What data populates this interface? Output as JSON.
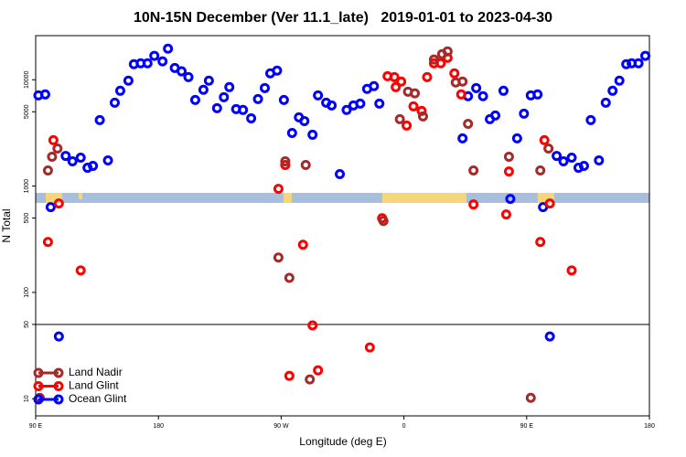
{
  "chart_data": {
    "type": "scatter",
    "title": "10N-15N December (Ver 11.1_late)   2019-01-01 to 2023-04-30",
    "xlabel": "Longitude (deg E)",
    "ylabel": "N Total",
    "log_y": true,
    "legend": "lower left",
    "hline": 50,
    "xlim": [
      90,
      540
    ],
    "xticks": [
      {
        "value": 90,
        "label": "90 E"
      },
      180,
      {
        "value": 270,
        "label": "90 W"
      },
      {
        "value": 360,
        "label": "0"
      },
      {
        "value": 450,
        "label": "90 E"
      },
      {
        "value": 540,
        "label": "180"
      }
    ],
    "ylim": [
      6.9,
      26000
    ],
    "yticks": [
      10,
      50,
      100,
      500,
      1000,
      5000,
      10000
    ],
    "series": [
      {
        "name": "Land Nadir",
        "color": "#a52a2a",
        "x": [
          93,
          99,
          102,
          106,
          268,
          273,
          276,
          288,
          291,
          345,
          357,
          363,
          368,
          374,
          382,
          388,
          392,
          398,
          403,
          407,
          411,
          437,
          453,
          460,
          466
        ],
        "values": [
          10.2,
          1402,
          1888,
          2256,
          213,
          1710,
          137,
          1580,
          15.2,
          470,
          4260,
          7720,
          7450,
          4520,
          15500,
          17400,
          18500,
          9420,
          9610,
          3850,
          1402,
          1888,
          10.2,
          1402,
          2256
        ]
      },
      {
        "name": "Land Glint",
        "color": "#ff0000",
        "x": [
          99,
          103,
          107,
          123,
          268,
          273,
          286,
          293,
          276,
          297,
          335,
          344,
          348,
          353,
          354,
          358,
          362,
          367,
          373,
          377,
          382,
          387,
          392,
          397,
          402,
          411,
          435,
          437,
          460,
          463,
          467,
          483
        ],
        "values": [
          298,
          2700,
          686,
          161,
          942,
          1580,
          281,
          49,
          16.4,
          18.5,
          30.4,
          499,
          10800,
          10600,
          8530,
          9610,
          3710,
          5620,
          5090,
          10600,
          14300,
          14300,
          16100,
          11500,
          7280,
          672,
          541,
          1373,
          298,
          2700,
          686,
          161
        ]
      },
      {
        "name": "Ocean Glint",
        "color": "#0000ff",
        "x": [
          92,
          97,
          101,
          107,
          112,
          117,
          123,
          128,
          132,
          137,
          143,
          148,
          152,
          158,
          162,
          167,
          172,
          177,
          183,
          187,
          192,
          197,
          202,
          207,
          213,
          217,
          223,
          228,
          232,
          237,
          242,
          248,
          253,
          258,
          262,
          267,
          272,
          278,
          283,
          287,
          293,
          297,
          303,
          307,
          313,
          318,
          323,
          328,
          333,
          338,
          342,
          403,
          407,
          413,
          418,
          423,
          427,
          433,
          438,
          443,
          448,
          453,
          458,
          462,
          467,
          472,
          477,
          483,
          488,
          492,
          497,
          503,
          508,
          513,
          518,
          523,
          527,
          532,
          537
        ],
        "values": [
          7130,
          7280,
          634,
          38.5,
          1923,
          1710,
          1850,
          1487,
          1548,
          4180,
          1743,
          6090,
          7880,
          9800,
          14000,
          14300,
          14300,
          16800,
          14900,
          19600,
          12900,
          12000,
          10600,
          6460,
          8040,
          9800,
          5400,
          6860,
          8530,
          5300,
          5200,
          4340,
          6590,
          8360,
          11500,
          12200,
          6460,
          3160,
          4430,
          4090,
          3040,
          7130,
          6090,
          5740,
          1295,
          5200,
          5740,
          5970,
          8200,
          8710,
          5970,
          2810,
          7000,
          8360,
          7000,
          4260,
          4610,
          7880,
          757,
          2810,
          4800,
          7130,
          7280,
          634,
          38.5,
          1923,
          1710,
          1850,
          1487,
          1548,
          4180,
          1743,
          6090,
          7880,
          9800,
          14000,
          14300,
          14300,
          16800
        ]
      }
    ]
  }
}
